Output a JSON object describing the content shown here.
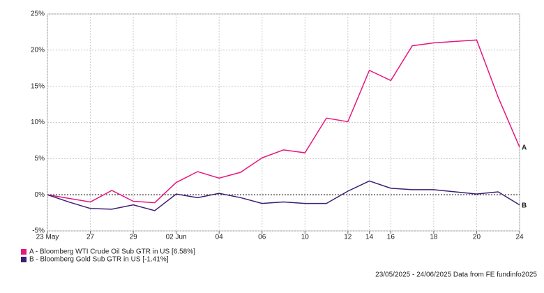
{
  "chart_data": {
    "type": "line",
    "categories": [
      "23 May",
      null,
      "27",
      null,
      "29",
      null,
      "02 Jun",
      null,
      "04",
      null,
      "06",
      null,
      "10",
      null,
      "12",
      "14",
      "16",
      null,
      "18",
      null,
      "20",
      null,
      "24"
    ],
    "series": [
      {
        "name": "A - Bloomberg WTI Crude Oil Sub GTR in US [6.58%]",
        "end_label": "A",
        "color": "#e6177f",
        "values": [
          0,
          -0.5,
          -1.0,
          0.6,
          -0.9,
          -1.1,
          1.7,
          3.2,
          2.3,
          3.1,
          5.1,
          6.2,
          5.8,
          10.6,
          10.1,
          17.2,
          15.8,
          20.6,
          21.0,
          21.2,
          21.4,
          13.5,
          6.58
        ]
      },
      {
        "name": "B - Bloomberg Gold Sub GTR in US [-1.41%]",
        "end_label": "B",
        "color": "#3b1f73",
        "values": [
          0,
          -1.0,
          -1.9,
          -2.0,
          -1.4,
          -2.2,
          0.1,
          -0.4,
          0.2,
          -0.4,
          -1.2,
          -1.0,
          -1.2,
          -1.2,
          0.5,
          1.9,
          0.9,
          0.7,
          0.7,
          0.4,
          0.1,
          0.4,
          -1.41
        ]
      }
    ],
    "ylim": [
      -5,
      25
    ],
    "yticks": [
      {
        "value": -5,
        "label": "-5%"
      },
      {
        "value": 0,
        "label": "0%"
      },
      {
        "value": 5,
        "label": "5%"
      },
      {
        "value": 10,
        "label": "10%"
      },
      {
        "value": 15,
        "label": "15%"
      },
      {
        "value": 20,
        "label": "20%"
      },
      {
        "value": 25,
        "label": "25%"
      }
    ],
    "grid": true,
    "footer": "23/05/2025 - 24/06/2025 Data from FE fundinfo2025"
  }
}
